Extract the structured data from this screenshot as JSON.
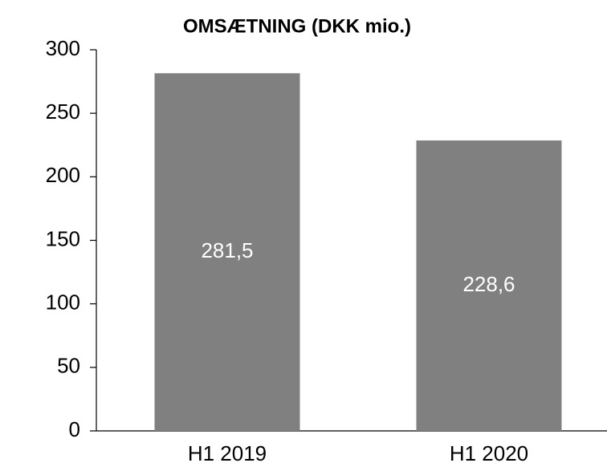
{
  "chart_data": {
    "type": "bar",
    "title": "OMSÆTNING (DKK mio.)",
    "categories": [
      "H1 2019",
      "H1 2020"
    ],
    "values": [
      281.5,
      228.6
    ],
    "value_labels": [
      "281,5",
      "228,6"
    ],
    "color": "#808080",
    "ylim": [
      0,
      300
    ],
    "yticks": [
      0,
      50,
      100,
      150,
      200,
      250,
      300
    ],
    "grid": false
  }
}
